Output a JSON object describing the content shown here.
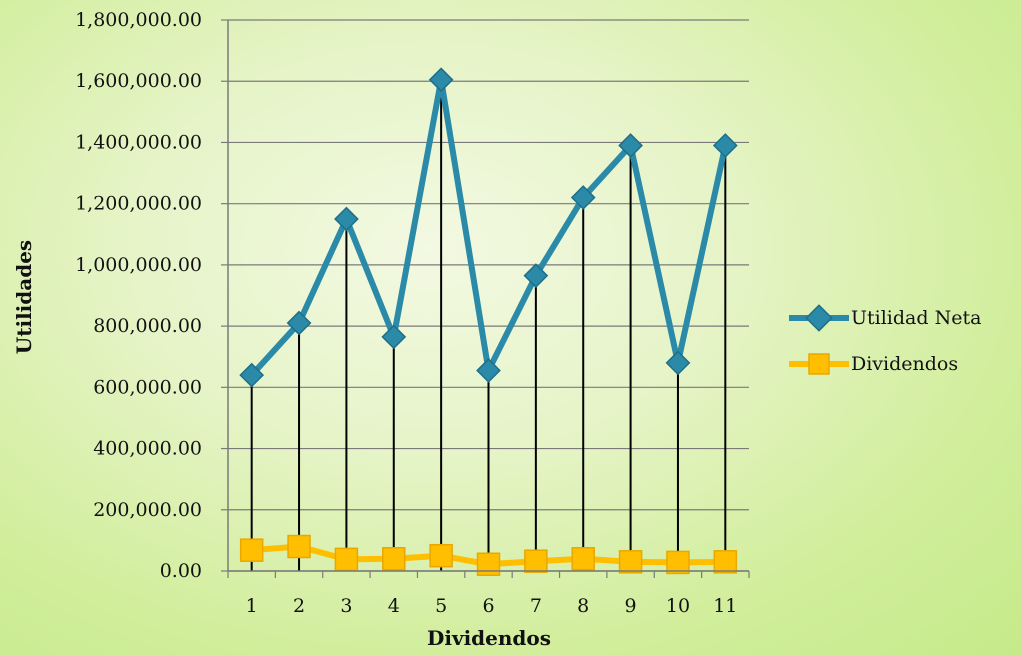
{
  "chart_data": {
    "type": "line",
    "xlabel": "Dividendos",
    "ylabel": "Utilidades",
    "categories": [
      "1",
      "2",
      "3",
      "4",
      "5",
      "6",
      "7",
      "8",
      "9",
      "10",
      "11"
    ],
    "ylim": [
      0,
      1800000
    ],
    "y_ticks": [
      "0.00",
      "200,000.00",
      "400,000.00",
      "600,000.00",
      "800,000.00",
      "1,000,000.00",
      "1,200,000.00",
      "1,400,000.00",
      "1,600,000.00",
      "1,800,000.00"
    ],
    "y_tick_values": [
      0,
      200000,
      400000,
      600000,
      800000,
      1000000,
      1200000,
      1400000,
      1600000,
      1800000
    ],
    "grid": "horizontal",
    "drop_lines": true,
    "legend_position": "right",
    "series": [
      {
        "name": "Utilidad Neta",
        "color": "#2a8aa8",
        "marker": "diamond",
        "values": [
          640000,
          810000,
          1150000,
          765000,
          1605000,
          655000,
          965000,
          1220000,
          1390000,
          680000,
          1390000
        ]
      },
      {
        "name": "Dividendos",
        "color": "#ffbf00",
        "marker": "square",
        "values": [
          68000,
          80000,
          38000,
          40000,
          50000,
          22000,
          32000,
          40000,
          30000,
          28000,
          30000
        ]
      }
    ]
  }
}
